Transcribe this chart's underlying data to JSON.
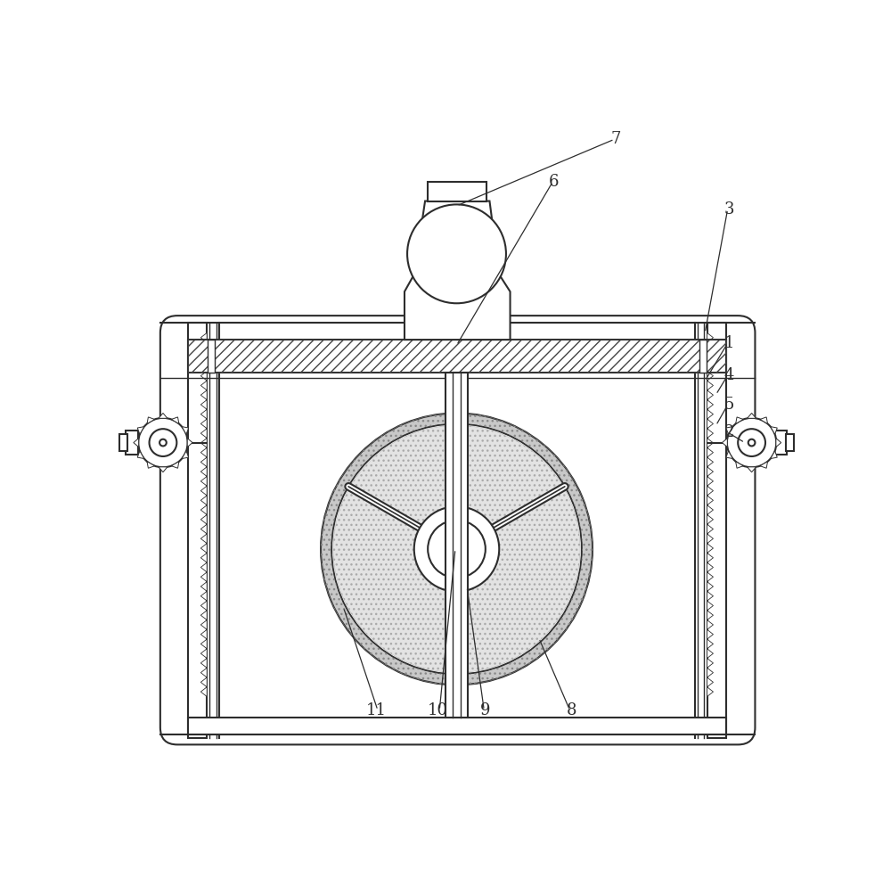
{
  "bg_color": "#ffffff",
  "line_color": "#2d2d2d",
  "fig_width": 10.0,
  "fig_height": 9.94,
  "annotations": [
    [
      "7",
      730,
      48,
      500,
      145
    ],
    [
      "6",
      640,
      110,
      500,
      348
    ],
    [
      "3",
      895,
      150,
      862,
      330
    ],
    [
      "1",
      895,
      345,
      862,
      400
    ],
    [
      "4",
      895,
      392,
      878,
      420
    ],
    [
      "5",
      895,
      435,
      878,
      465
    ],
    [
      "2",
      895,
      475,
      920,
      490
    ],
    [
      "8",
      665,
      880,
      620,
      775
    ],
    [
      "9",
      540,
      880,
      515,
      700
    ],
    [
      "10",
      475,
      880,
      498,
      645
    ],
    [
      "11",
      385,
      880,
      335,
      730
    ]
  ]
}
